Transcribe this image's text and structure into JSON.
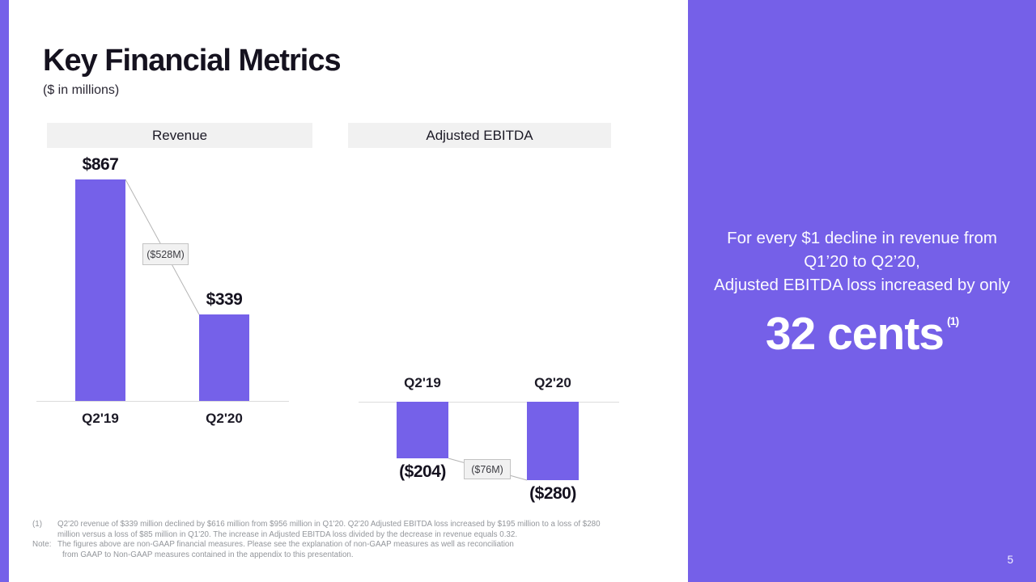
{
  "slide": {
    "title": "Key Financial Metrics",
    "subtitle": "($ in millions)",
    "page_number": "5",
    "accent_color": "#7561e9",
    "panel_color": "#7560e8",
    "header_bg": "#f1f1f1"
  },
  "panel": {
    "line1": "For every $1 decline in revenue from",
    "line2": "Q1’20 to Q2’20,",
    "line3": "Adjusted EBITDA loss increased by only",
    "big_text": "32 cents",
    "superscript": "(1)"
  },
  "footnotes": {
    "marker1": "(1)",
    "note1_line1": "Q2'20 revenue of $339 million declined by $616 million from $956 million in Q1'20. Q2'20 Adjusted EBITDA loss increased by $195 million to a loss of $280",
    "note1_line2": "million versus a loss of $85 million in Q1'20. The increase in Adjusted EBITDA loss divided by the decrease in revenue equals 0.32.",
    "marker2": "Note:",
    "note2_line1": "The figures above are non-GAAP financial measures.  Please see the explanation of non-GAAP measures as well as reconciliation",
    "note2_line2": "from GAAP to Non-GAAP measures contained in the appendix to this presentation."
  },
  "chart_data": [
    {
      "type": "bar",
      "title": "Revenue",
      "units": "$ in millions",
      "categories": [
        "Q2'19",
        "Q2'20"
      ],
      "values": [
        867,
        339
      ],
      "value_labels": [
        "$867",
        "$339"
      ],
      "delta_label": "($528M)",
      "ylim": [
        0,
        867
      ],
      "bar_color": "#7561e9",
      "legend": "none",
      "grid": "off"
    },
    {
      "type": "bar",
      "title": "Adjusted EBITDA",
      "units": "$ in millions",
      "categories": [
        "Q2'19",
        "Q2'20"
      ],
      "values": [
        -204,
        -280
      ],
      "value_labels": [
        "($204)",
        "($280)"
      ],
      "delta_label": "($76M)",
      "ylim": [
        -280,
        0
      ],
      "bar_color": "#7561e9",
      "legend": "none",
      "grid": "off"
    }
  ]
}
